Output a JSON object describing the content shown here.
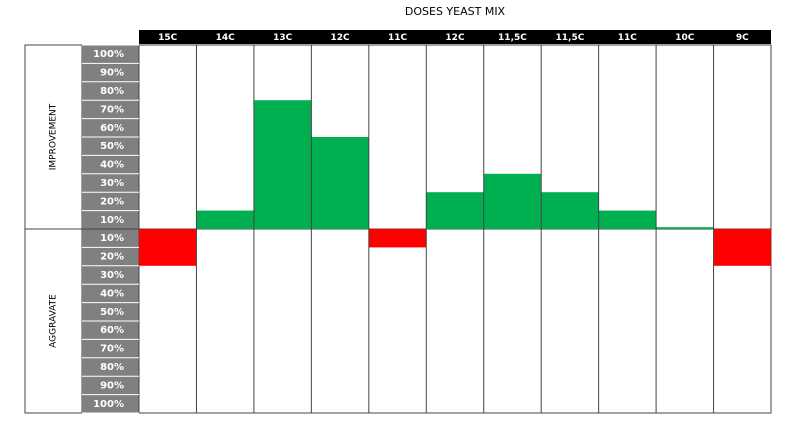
{
  "chart_data": {
    "type": "bar",
    "title": "DOSES YEAST MIX",
    "categories": [
      "15C",
      "14C",
      "13C",
      "12C",
      "11C",
      "12C",
      "11,5C",
      "11,5C",
      "11C",
      "10C",
      "9C"
    ],
    "values": [
      -20,
      10,
      70,
      50,
      -10,
      20,
      30,
      20,
      10,
      1,
      -20
    ],
    "color": "#00b050",
    "negative_color": "#ff0000",
    "ylim": [
      -100,
      100
    ],
    "yticks": [
      {
        "value": 100,
        "label": "100%"
      },
      {
        "value": 90,
        "label": "90%"
      },
      {
        "value": 80,
        "label": "80%"
      },
      {
        "value": 70,
        "label": "70%"
      },
      {
        "value": 60,
        "label": "60%"
      },
      {
        "value": 50,
        "label": "50%"
      },
      {
        "value": 40,
        "label": "40%"
      },
      {
        "value": 30,
        "label": "30%"
      },
      {
        "value": 20,
        "label": "20%"
      },
      {
        "value": 10,
        "label": "10%"
      },
      {
        "value": -10,
        "label": "10%"
      },
      {
        "value": -20,
        "label": "20%"
      },
      {
        "value": -30,
        "label": "30%"
      },
      {
        "value": -40,
        "label": "40%"
      },
      {
        "value": -50,
        "label": "50%"
      },
      {
        "value": -60,
        "label": "60%"
      },
      {
        "value": -70,
        "label": "70%"
      },
      {
        "value": -80,
        "label": "80%"
      },
      {
        "value": -90,
        "label": "90%"
      },
      {
        "value": -100,
        "label": "100%"
      }
    ],
    "positive_label": "IMPROVEMENT",
    "negative_label": "AGGRAVATE"
  }
}
